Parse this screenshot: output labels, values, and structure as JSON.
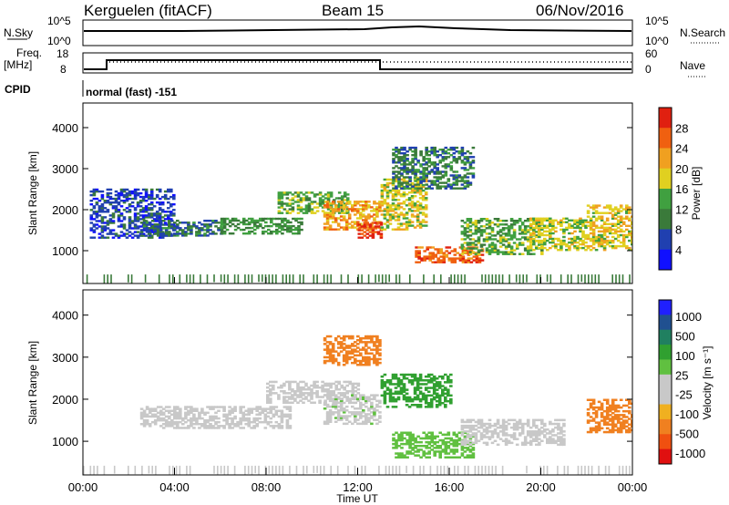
{
  "header": {
    "station": "Kerguelen (fitACF)",
    "beam": "Beam 15",
    "date": "06/Nov/2016"
  },
  "summary_labels": {
    "nsky": "N.Sky",
    "nsky_hi": "10^5",
    "nsky_lo": "10^0",
    "nsearch": "N.Search",
    "nsearch_hi": "10^5",
    "nsearch_lo": "10^0",
    "freq": "Freq.",
    "freq_unit": "[MHz]",
    "freq_hi": "18",
    "freq_lo": "8",
    "nave": "Nave",
    "nave_hi": "60",
    "nave_lo": "0",
    "cpid": "CPID",
    "cpid_text": "normal (fast) -151"
  },
  "colors": {
    "power_scale": [
      "#1010ff",
      "#2040b0",
      "#3a7a3a",
      "#40a040",
      "#e0d020",
      "#f0a020",
      "#f06010",
      "#e02010"
    ],
    "velocity_scale": [
      "#e01010",
      "#f05010",
      "#f08020",
      "#f0b020",
      "#c8c8c8",
      "#c8c8c8",
      "#60c040",
      "#30a030",
      "#208060",
      "#205090",
      "#2020ff"
    ]
  },
  "chart_data": [
    {
      "type": "heatmap",
      "name": "power-panel",
      "xlabel": "",
      "ylabel": "Slant Range [km]",
      "xlim": [
        "00:00",
        "24:00"
      ],
      "ylim": [
        200,
        4600
      ],
      "yticks": [
        "1000",
        "2000",
        "3000",
        "4000"
      ],
      "colorbar_label": "Power [dB]",
      "colorbar_ticks": [
        "4",
        "8",
        "12",
        "16",
        "20",
        "24",
        "28"
      ],
      "colorbar_range": [
        0,
        32
      ],
      "regions": [
        {
          "t0": 0.3,
          "t1": 4.0,
          "r0": 1300,
          "r1": 2500,
          "v": 6
        },
        {
          "t0": 2.5,
          "t1": 6.0,
          "r0": 1350,
          "r1": 1750,
          "v": 9
        },
        {
          "t0": 6.0,
          "t1": 9.5,
          "r0": 1400,
          "r1": 1800,
          "v": 12
        },
        {
          "t0": 8.5,
          "t1": 11.5,
          "r0": 1900,
          "r1": 2400,
          "v": 14
        },
        {
          "t0": 10.5,
          "t1": 13.0,
          "r0": 1500,
          "r1": 2200,
          "v": 22
        },
        {
          "t0": 12.0,
          "t1": 13.0,
          "r0": 1300,
          "r1": 1700,
          "v": 28
        },
        {
          "t0": 13.0,
          "t1": 15.0,
          "r0": 1500,
          "r1": 2800,
          "v": 18
        },
        {
          "t0": 13.5,
          "t1": 17.0,
          "r0": 2500,
          "r1": 3500,
          "v": 10
        },
        {
          "t0": 14.5,
          "t1": 17.5,
          "r0": 700,
          "r1": 1100,
          "v": 26
        },
        {
          "t0": 16.5,
          "t1": 20.0,
          "r0": 900,
          "r1": 1800,
          "v": 14
        },
        {
          "t0": 19.5,
          "t1": 22.0,
          "r0": 1000,
          "r1": 1800,
          "v": 17
        },
        {
          "t0": 22.0,
          "t1": 24.0,
          "r0": 1000,
          "r1": 2100,
          "v": 19
        }
      ]
    },
    {
      "type": "heatmap",
      "name": "velocity-panel",
      "xlabel": "Time UT",
      "ylabel": "Slant Range [km]",
      "xlim": [
        "00:00",
        "24:00"
      ],
      "ylim": [
        200,
        4600
      ],
      "xticks": [
        "00:00",
        "04:00",
        "08:00",
        "12:00",
        "16:00",
        "20:00",
        "00:00"
      ],
      "yticks": [
        "1000",
        "2000",
        "3000",
        "4000"
      ],
      "colorbar_label": "Velocity [m s⁻¹]",
      "colorbar_ticks": [
        "1000",
        "500",
        "100",
        "25",
        "-25",
        "-100",
        "-500",
        "-1000"
      ],
      "regions": [
        {
          "t0": 2.5,
          "t1": 9.0,
          "r0": 1300,
          "r1": 1800,
          "v": 0
        },
        {
          "t0": 8.0,
          "t1": 12.0,
          "r0": 1900,
          "r1": 2400,
          "v": 0
        },
        {
          "t0": 10.5,
          "t1": 13.0,
          "r0": 1400,
          "r1": 2100,
          "v": 10
        },
        {
          "t0": 10.5,
          "t1": 13.0,
          "r0": 2800,
          "r1": 3500,
          "v": -200
        },
        {
          "t0": 13.0,
          "t1": 16.0,
          "r0": 1800,
          "r1": 2600,
          "v": 150
        },
        {
          "t0": 13.5,
          "t1": 17.0,
          "r0": 600,
          "r1": 1200,
          "v": 80
        },
        {
          "t0": 16.5,
          "t1": 21.0,
          "r0": 900,
          "r1": 1500,
          "v": 0
        },
        {
          "t0": 22.0,
          "t1": 24.0,
          "r0": 1200,
          "r1": 2000,
          "v": -300
        }
      ]
    }
  ]
}
